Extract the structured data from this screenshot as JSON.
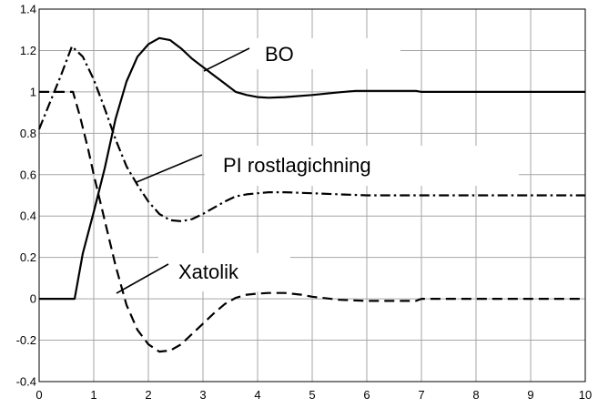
{
  "chart_data": {
    "type": "line",
    "title": "",
    "xlabel": "",
    "ylabel": "",
    "xlim": [
      0,
      10
    ],
    "ylim": [
      -0.4,
      1.4
    ],
    "grid": true,
    "xticks": [
      0,
      1,
      2,
      3,
      4,
      5,
      6,
      7,
      8,
      9,
      10
    ],
    "yticks": [
      -0.4,
      -0.2,
      0,
      0.2,
      0.4,
      0.6,
      0.8,
      1,
      1.2,
      1.4
    ],
    "xtick_labels": [
      "0",
      "1",
      "2",
      "3",
      "4",
      "5",
      "6",
      "7",
      "8",
      "9",
      "10"
    ],
    "ytick_labels": [
      "-0.4",
      "-0.2",
      "0",
      "0.2",
      "0.4",
      "0.6",
      "0.8",
      "1",
      "1.2",
      "1.4"
    ],
    "series": [
      {
        "name": "BO",
        "style": "solid",
        "x": [
          0,
          0.65,
          0.8,
          1.0,
          1.2,
          1.4,
          1.6,
          1.8,
          2.0,
          2.2,
          2.4,
          2.6,
          2.8,
          3.0,
          3.2,
          3.4,
          3.6,
          3.8,
          4.0,
          4.2,
          4.5,
          5.0,
          5.5,
          5.8,
          6.0,
          6.5,
          6.9,
          7.0,
          8.0,
          9.0,
          10.0
        ],
        "y": [
          0,
          0,
          0.22,
          0.42,
          0.63,
          0.87,
          1.05,
          1.17,
          1.23,
          1.26,
          1.25,
          1.21,
          1.16,
          1.12,
          1.08,
          1.04,
          1.0,
          0.985,
          0.975,
          0.972,
          0.975,
          0.985,
          0.998,
          1.005,
          1.005,
          1.005,
          1.005,
          1.0,
          1.0,
          1.0,
          1.0
        ]
      },
      {
        "name": "PI rostlagichning",
        "style": "dashdot",
        "x": [
          0,
          0.2,
          0.4,
          0.6,
          0.8,
          1.0,
          1.2,
          1.4,
          1.6,
          1.8,
          2.0,
          2.2,
          2.4,
          2.6,
          2.8,
          3.0,
          3.2,
          3.4,
          3.6,
          3.8,
          4.0,
          4.2,
          4.5,
          5.0,
          5.5,
          6.0,
          7.0,
          8.0,
          9.0,
          10.0
        ],
        "y": [
          0.82,
          0.95,
          1.08,
          1.22,
          1.17,
          1.06,
          0.92,
          0.77,
          0.64,
          0.55,
          0.47,
          0.41,
          0.38,
          0.375,
          0.385,
          0.41,
          0.44,
          0.47,
          0.495,
          0.505,
          0.51,
          0.515,
          0.515,
          0.51,
          0.505,
          0.5,
          0.5,
          0.5,
          0.5,
          0.5
        ]
      },
      {
        "name": "Xatolik",
        "style": "dashed",
        "x": [
          0,
          0.62,
          0.75,
          0.9,
          1.0,
          1.2,
          1.4,
          1.6,
          1.8,
          2.0,
          2.2,
          2.4,
          2.6,
          2.8,
          3.0,
          3.2,
          3.4,
          3.6,
          3.8,
          4.0,
          4.2,
          4.5,
          4.8,
          5.0,
          5.5,
          6.0,
          6.5,
          6.9,
          7.0,
          8.0,
          9.0,
          10.0
        ],
        "y": [
          1.0,
          1.0,
          0.88,
          0.72,
          0.6,
          0.38,
          0.16,
          -0.03,
          -0.15,
          -0.22,
          -0.255,
          -0.25,
          -0.22,
          -0.17,
          -0.12,
          -0.07,
          -0.025,
          0.005,
          0.02,
          0.025,
          0.028,
          0.028,
          0.02,
          0.01,
          -0.005,
          -0.01,
          -0.01,
          -0.01,
          0.0,
          0.0,
          0.0,
          0.0
        ]
      }
    ],
    "annotations": [
      {
        "text": "BO",
        "points_to": "BO"
      },
      {
        "text": "PI rostlagichning",
        "points_to": "PI rostlagichning"
      },
      {
        "text": "Xatolik",
        "points_to": "Xatolik"
      }
    ]
  }
}
